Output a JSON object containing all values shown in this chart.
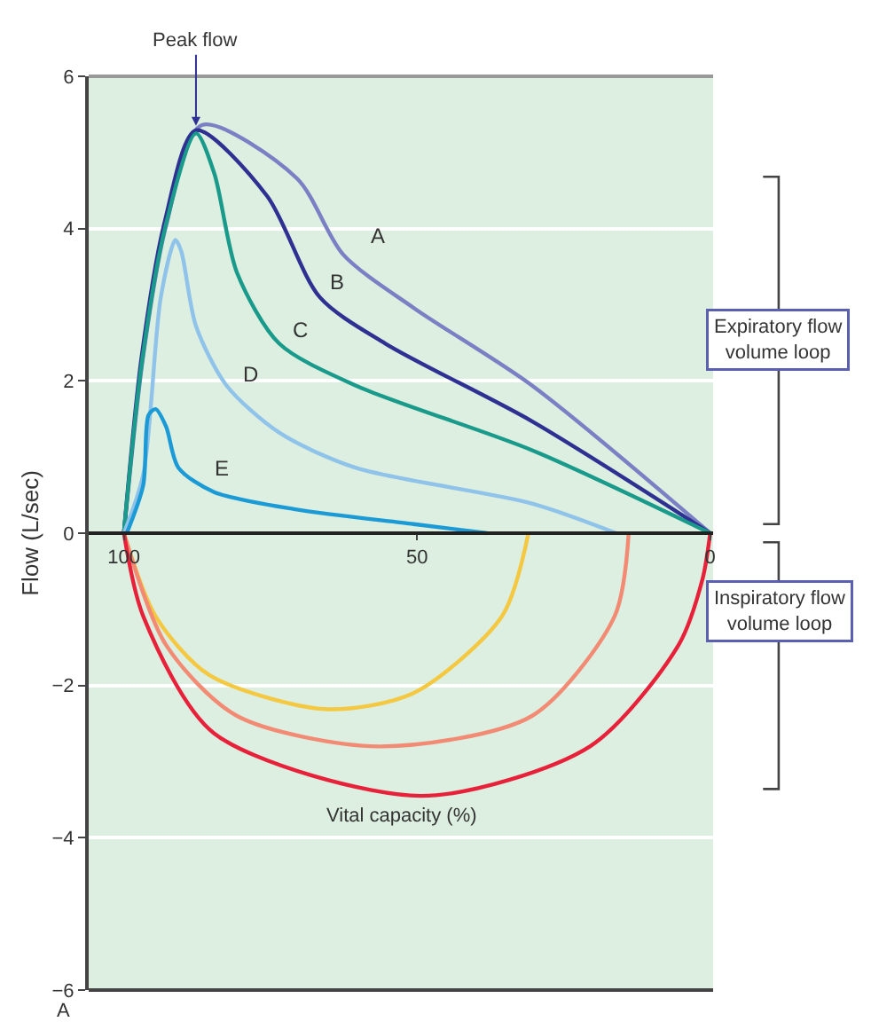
{
  "chart_data": {
    "type": "line",
    "xlabel": "Vital capacity (%)",
    "ylabel": "Flow (L/sec)",
    "xlim": [
      106,
      -0.5
    ],
    "xticks": [
      100,
      50,
      0
    ],
    "ylim": [
      -6,
      6
    ],
    "yticks": [
      {
        "value": -6,
        "label": "−6"
      },
      {
        "value": -4,
        "label": "−4"
      },
      {
        "value": -2,
        "label": "−2"
      },
      0,
      2,
      4,
      6
    ],
    "grid": "y",
    "legend": false,
    "marker": "none",
    "line_style": "solid",
    "series": [
      {
        "name": "A",
        "color": "#7b7fc4",
        "x": [
          100,
          96.7,
          92.8,
          86.7,
          70.5,
          62.6,
          50.6,
          30.4,
          0
        ],
        "values": [
          0,
          2.33,
          4.04,
          5.36,
          4.66,
          3.66,
          2.96,
          1.94,
          0
        ]
      },
      {
        "name": "B",
        "color": "#2e3192",
        "x": [
          100,
          97,
          93,
          87.7,
          75.6,
          66.6,
          55.4,
          30.4,
          0
        ],
        "values": [
          0,
          2.3,
          4.1,
          5.29,
          4.43,
          3.1,
          2.49,
          1.47,
          0
        ]
      },
      {
        "name": "C",
        "color": "#1a9a8a",
        "x": [
          100,
          97,
          93,
          87.7,
          84.6,
          80.7,
          73.5,
          60.5,
          30.4,
          0
        ],
        "values": [
          0,
          2.2,
          4.0,
          5.25,
          4.73,
          3.42,
          2.49,
          1.94,
          1.09,
          0
        ]
      },
      {
        "name": "D",
        "color": "#8fc3ea",
        "x": [
          100,
          96.7,
          93.7,
          91.2,
          90.2,
          87.7,
          82.5,
          73.5,
          60.5,
          30.4,
          16
        ],
        "values": [
          0,
          0.77,
          3.1,
          3.85,
          3.7,
          2.72,
          1.94,
          1.32,
          0.86,
          0.39,
          0
        ]
      },
      {
        "name": "E",
        "color": "#1b9ad6",
        "x": [
          99.5,
          96.7,
          95.8,
          94.6,
          92.8,
          90.7,
          84.6,
          70.5,
          50.6,
          38
        ],
        "values": [
          0,
          0.63,
          1.55,
          1.63,
          1.4,
          0.86,
          0.54,
          0.31,
          0.12,
          0
        ]
      },
      {
        "color": "#f5c842",
        "x": [
          100,
          94.6,
          85.5,
          65.7,
          50.6,
          35.5,
          31
        ],
        "values": [
          0,
          -1.09,
          -1.86,
          -2.31,
          -2.1,
          -1.09,
          0
        ]
      },
      {
        "color": "#f28a74",
        "x": [
          100,
          92.8,
          80.7,
          56.6,
          30.4,
          16.3,
          13.9
        ],
        "values": [
          0,
          -1.47,
          -2.4,
          -2.8,
          -2.4,
          -1.09,
          0
        ]
      },
      {
        "color": "#e8213a",
        "x": [
          100,
          96.7,
          84.6,
          49.4,
          20.5,
          5.4,
          1.3,
          0
        ],
        "values": [
          0,
          -1.09,
          -2.63,
          -3.45,
          -2.8,
          -1.47,
          -0.6,
          0
        ]
      }
    ],
    "annotations": [
      {
        "text": "Peak flow",
        "x": 87.7,
        "y": 5.35
      },
      "Expiratory flow\nvolume loop",
      "Inspiratory flow\nvolume loop",
      "A"
    ]
  }
}
